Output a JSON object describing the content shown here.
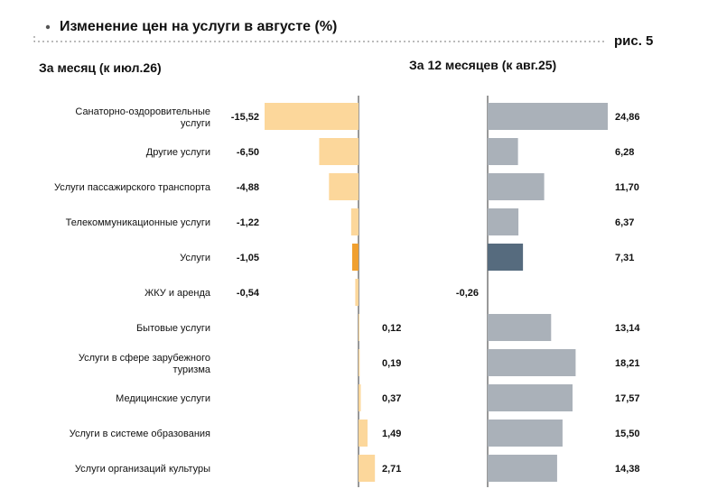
{
  "header": {
    "title": "Изменение цен на услуги в августе (%)",
    "figure_label": "рис. 5"
  },
  "chart_data": [
    {
      "type": "bar",
      "orientation": "horizontal",
      "title": "За месяц (к июл.26)",
      "categories": [
        "Санаторно-оздоровительные услуги",
        "Другие услуги",
        "Услуги пассажирского транспорта",
        "Телекоммуникационные услуги",
        "Услуги",
        "ЖКУ и аренда",
        "Бытовые услуги",
        "Услуги в сфере зарубежного туризма",
        "Медицинские услуги",
        "Услуги в системе образования",
        "Услуги организаций культуры"
      ],
      "category_lines": [
        [
          "Санаторно-оздоровительные",
          "услуги"
        ],
        [
          "Другие услуги"
        ],
        [
          "Услуги пассажирского транспорта"
        ],
        [
          "Телекоммуникационные услуги"
        ],
        [
          "Услуги"
        ],
        [
          "ЖКУ и аренда"
        ],
        [
          "Бытовые услуги"
        ],
        [
          "Услуги в сфере зарубежного",
          "туризма"
        ],
        [
          "Медицинские услуги"
        ],
        [
          "Услуги в системе образования"
        ],
        [
          "Услуги организаций культуры"
        ]
      ],
      "values": [
        -15.52,
        -6.5,
        -4.88,
        -1.22,
        -1.05,
        -0.54,
        0.12,
        0.19,
        0.37,
        1.49,
        2.71
      ],
      "labels": [
        "-15,52",
        "-6,50",
        "-4,88",
        "-1,22",
        "-1,05",
        "-0,54",
        "0,12",
        "0,19",
        "0,37",
        "1,49",
        "2,71"
      ],
      "highlight_index": 4,
      "colors": {
        "bar": "#fcd79b",
        "highlight": "#f0a030"
      }
    },
    {
      "type": "bar",
      "orientation": "horizontal",
      "title": "За 12 месяцев (к авг.25)",
      "values": [
        24.86,
        6.28,
        11.7,
        6.37,
        7.31,
        -0.26,
        13.14,
        18.21,
        17.57,
        15.5,
        14.38
      ],
      "labels": [
        "24,86",
        "6,28",
        "11,70",
        "6,37",
        "7,31",
        "-0,26",
        "13,14",
        "18,21",
        "17,57",
        "15,50",
        "14,38"
      ],
      "highlight_index": 4,
      "colors": {
        "bar": "#aab1b9",
        "highlight": "#566b7e"
      }
    }
  ]
}
